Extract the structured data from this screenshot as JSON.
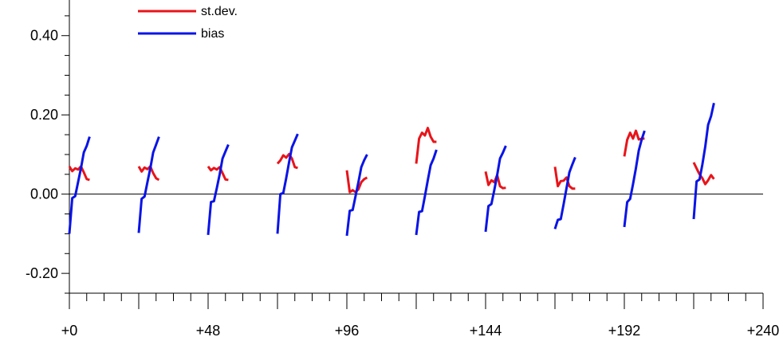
{
  "chart_data": {
    "type": "line",
    "xlim": [
      0,
      240
    ],
    "ylim": [
      -0.25,
      0.5
    ],
    "grid": false,
    "legend_position": "top-left",
    "x_ticks": [
      {
        "value": 0,
        "label": "+0"
      },
      {
        "value": 48,
        "label": "+48"
      },
      {
        "value": 96,
        "label": "+96"
      },
      {
        "value": 144,
        "label": "+144"
      },
      {
        "value": 192,
        "label": "+192"
      },
      {
        "value": 240,
        "label": "+240"
      }
    ],
    "y_ticks": [
      {
        "value": 0.4,
        "label": "0.40"
      },
      {
        "value": 0.2,
        "label": "0.20"
      },
      {
        "value": 0.0,
        "label": "0.00"
      },
      {
        "value": -0.2,
        "label": "-0.20"
      }
    ],
    "reference_line_y": 0,
    "series": [
      {
        "name": "st.dev.",
        "color": "#e8141a",
        "segments": [
          [
            [
              0,
              0.07
            ],
            [
              1,
              0.058
            ],
            [
              2,
              0.065
            ],
            [
              3,
              0.062
            ],
            [
              4,
              0.07
            ],
            [
              5,
              0.055
            ],
            [
              6,
              0.038
            ],
            [
              7,
              0.036
            ]
          ],
          [
            [
              24,
              0.07
            ],
            [
              25,
              0.057
            ],
            [
              26,
              0.067
            ],
            [
              27,
              0.063
            ],
            [
              28,
              0.07
            ],
            [
              29,
              0.053
            ],
            [
              30,
              0.04
            ],
            [
              31,
              0.036
            ]
          ],
          [
            [
              48,
              0.07
            ],
            [
              49,
              0.06
            ],
            [
              50,
              0.066
            ],
            [
              51,
              0.062
            ],
            [
              52,
              0.068
            ],
            [
              53,
              0.053
            ],
            [
              54,
              0.037
            ],
            [
              55,
              0.036
            ]
          ],
          [
            [
              72,
              0.077
            ],
            [
              73,
              0.085
            ],
            [
              74,
              0.098
            ],
            [
              75,
              0.092
            ],
            [
              76,
              0.101
            ],
            [
              77,
              0.09
            ],
            [
              78,
              0.068
            ],
            [
              79,
              0.066
            ]
          ],
          [
            [
              96,
              0.06
            ],
            [
              97,
              0.005
            ],
            [
              98,
              0.01
            ],
            [
              99,
              0.005
            ],
            [
              100,
              0.012
            ],
            [
              101,
              0.03
            ],
            [
              102,
              0.038
            ],
            [
              103,
              0.042
            ]
          ],
          [
            [
              120,
              0.077
            ],
            [
              121,
              0.14
            ],
            [
              122,
              0.155
            ],
            [
              123,
              0.148
            ],
            [
              124,
              0.167
            ],
            [
              125,
              0.145
            ],
            [
              126,
              0.132
            ],
            [
              127,
              0.132
            ]
          ],
          [
            [
              144,
              0.057
            ],
            [
              145,
              0.023
            ],
            [
              146,
              0.035
            ],
            [
              147,
              0.03
            ],
            [
              148,
              0.048
            ],
            [
              149,
              0.02
            ],
            [
              150,
              0.015
            ],
            [
              151,
              0.016
            ]
          ],
          [
            [
              168,
              0.069
            ],
            [
              169,
              0.02
            ],
            [
              170,
              0.033
            ],
            [
              171,
              0.034
            ],
            [
              172,
              0.042
            ],
            [
              173,
              0.02
            ],
            [
              174,
              0.014
            ],
            [
              175,
              0.014
            ]
          ],
          [
            [
              192,
              0.095
            ],
            [
              193,
              0.137
            ],
            [
              194,
              0.155
            ],
            [
              195,
              0.14
            ],
            [
              196,
              0.16
            ],
            [
              197,
              0.138
            ],
            [
              198,
              0.14
            ],
            [
              199,
              0.14
            ]
          ],
          [
            [
              216,
              0.08
            ],
            [
              217,
              0.065
            ],
            [
              218,
              0.05
            ],
            [
              219,
              0.04
            ],
            [
              220,
              0.025
            ],
            [
              221,
              0.035
            ],
            [
              222,
              0.048
            ],
            [
              223,
              0.038
            ]
          ]
        ]
      },
      {
        "name": "bias",
        "color": "#0a14e6",
        "segments": [
          [
            [
              0,
              -0.1
            ],
            [
              1,
              -0.01
            ],
            [
              2,
              -0.005
            ],
            [
              3,
              0.03
            ],
            [
              4,
              0.065
            ],
            [
              5,
              0.105
            ],
            [
              6,
              0.122
            ],
            [
              7,
              0.145
            ]
          ],
          [
            [
              24,
              -0.098
            ],
            [
              25,
              -0.012
            ],
            [
              26,
              -0.006
            ],
            [
              27,
              0.03
            ],
            [
              28,
              0.065
            ],
            [
              29,
              0.105
            ],
            [
              30,
              0.125
            ],
            [
              31,
              0.145
            ]
          ],
          [
            [
              48,
              -0.103
            ],
            [
              49,
              -0.02
            ],
            [
              50,
              -0.018
            ],
            [
              51,
              0.015
            ],
            [
              52,
              0.05
            ],
            [
              53,
              0.09
            ],
            [
              54,
              0.108
            ],
            [
              55,
              0.125
            ]
          ],
          [
            [
              72,
              -0.1
            ],
            [
              73,
              0.0
            ],
            [
              74,
              0.003
            ],
            [
              75,
              0.04
            ],
            [
              76,
              0.08
            ],
            [
              77,
              0.118
            ],
            [
              78,
              0.135
            ],
            [
              79,
              0.152
            ]
          ],
          [
            [
              96,
              -0.105
            ],
            [
              97,
              -0.042
            ],
            [
              98,
              -0.04
            ],
            [
              99,
              -0.005
            ],
            [
              100,
              0.03
            ],
            [
              101,
              0.068
            ],
            [
              102,
              0.086
            ],
            [
              103,
              0.1
            ]
          ],
          [
            [
              120,
              -0.103
            ],
            [
              121,
              -0.045
            ],
            [
              122,
              -0.043
            ],
            [
              123,
              -0.005
            ],
            [
              124,
              0.035
            ],
            [
              125,
              0.073
            ],
            [
              126,
              0.09
            ],
            [
              127,
              0.112
            ]
          ],
          [
            [
              144,
              -0.095
            ],
            [
              145,
              -0.03
            ],
            [
              146,
              -0.025
            ],
            [
              147,
              0.01
            ],
            [
              148,
              0.048
            ],
            [
              149,
              0.09
            ],
            [
              150,
              0.105
            ],
            [
              151,
              0.122
            ]
          ],
          [
            [
              168,
              -0.088
            ],
            [
              169,
              -0.065
            ],
            [
              170,
              -0.063
            ],
            [
              171,
              -0.025
            ],
            [
              172,
              0.015
            ],
            [
              173,
              0.055
            ],
            [
              174,
              0.075
            ],
            [
              175,
              0.093
            ]
          ],
          [
            [
              192,
              -0.083
            ],
            [
              193,
              -0.02
            ],
            [
              194,
              -0.012
            ],
            [
              195,
              0.025
            ],
            [
              196,
              0.065
            ],
            [
              197,
              0.11
            ],
            [
              198,
              0.138
            ],
            [
              199,
              0.16
            ]
          ],
          [
            [
              216,
              -0.063
            ],
            [
              217,
              0.032
            ],
            [
              218,
              0.037
            ],
            [
              219,
              0.075
            ],
            [
              220,
              0.12
            ],
            [
              221,
              0.175
            ],
            [
              222,
              0.197
            ],
            [
              223,
              0.23
            ]
          ]
        ]
      }
    ]
  }
}
